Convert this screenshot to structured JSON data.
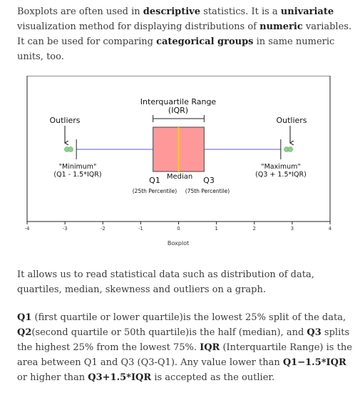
{
  "intro": {
    "t1": "Boxplots are often used in ",
    "b1": "descriptive",
    "t2": " statistics. It is a ",
    "b2": "univariate",
    "t3": " visualization method for displaying distributions of ",
    "b3": "numeric",
    "t4": " variables. It can be used for comparing ",
    "b4": "categorical groups",
    "t5": " in same numeric units, too."
  },
  "figure": {
    "iqr_label_1": "Interquartile Range",
    "iqr_label_2": "(IQR)",
    "outliers_left": "Outliers",
    "outliers_right": "Outliers",
    "min_label_1": "\"Minimum\"",
    "min_label_2": "(Q1 - 1.5*IQR)",
    "max_label_1": "\"Maximum\"",
    "max_label_2": "(Q3 + 1.5*IQR)",
    "q1_label": "Q1",
    "median_label": "Median",
    "q3_label": "Q3",
    "q1_sub": "(25th Percentile)",
    "q3_sub": "(75th Percentile)",
    "xlabel": "Boxplot",
    "ticks": [
      "-4",
      "-3",
      "-2",
      "-1",
      "0",
      "1",
      "2",
      "3",
      "4"
    ],
    "colors": {
      "box": "#ff9999",
      "median": "#ffd11a",
      "whisker": "#7a7ae6",
      "outlier": "#8fd18f"
    }
  },
  "chart_data": {
    "type": "boxplot",
    "xlim": [
      -4,
      4
    ],
    "q1": -0.6745,
    "median": 0,
    "q3": 0.6745,
    "whisker_low": -2.698,
    "whisker_high": 2.698,
    "outliers_low": [
      -2.95,
      -2.85
    ],
    "outliers_high": [
      2.85,
      2.95
    ],
    "xlabel": "Boxplot"
  },
  "body2": {
    "text": "It allows us to read statistical data such as distribution of data, quartiles, median, skewness and outliers on a graph."
  },
  "body3": {
    "b1": "Q1",
    "t1": " (first quartile or lower quartile)is the lowest 25% split of the data, ",
    "b2": "Q2",
    "t2": "(second quartile or 50th quartile)is the half (median), and ",
    "b3": "Q3",
    "t3": " splits the highest 25% from the lowest 75%. ",
    "b4": "IQR",
    "t4": " (Interquartile Range) is the area between Q1 and Q3 (Q3-Q1). Any value lower than ",
    "b5": "Q1−1.5*IQR",
    "t5": " or higher than ",
    "b6": "Q3+1.5*IQR",
    "t6": " is accepted as the outlier."
  }
}
